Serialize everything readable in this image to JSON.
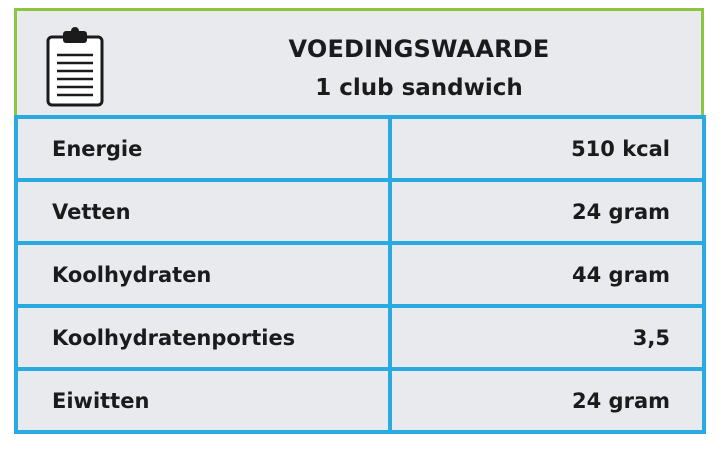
{
  "header": {
    "title": "VOEDINGSWAARDE",
    "subtitle": "1 club sandwich"
  },
  "table": {
    "rows": [
      [
        "Energie",
        "510 kcal"
      ],
      [
        "Vetten",
        "24 gram"
      ],
      [
        "Koolhydraten",
        "44 gram"
      ],
      [
        "Koolhydratenporties",
        "3,5"
      ],
      [
        "Eiwitten",
        "24 gram"
      ]
    ]
  }
}
